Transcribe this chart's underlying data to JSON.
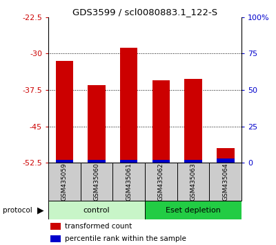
{
  "title": "GDS3599 / scl0080883.1_122-S",
  "samples": [
    "GSM435059",
    "GSM435060",
    "GSM435061",
    "GSM435062",
    "GSM435063",
    "GSM435064"
  ],
  "red_values": [
    -31.5,
    -36.5,
    -28.8,
    -35.5,
    -35.2,
    -49.5
  ],
  "blue_heights": [
    0.6,
    0.6,
    0.6,
    0.6,
    0.6,
    0.9
  ],
  "ylim_left": [
    -52.5,
    -22.5
  ],
  "ylim_right": [
    0,
    100
  ],
  "yticks_left": [
    -52.5,
    -45.0,
    -37.5,
    -30.0,
    -22.5
  ],
  "yticks_right": [
    0,
    25,
    50,
    75,
    100
  ],
  "ytick_labels_left": [
    "-52.5",
    "-45",
    "-37.5",
    "-30",
    "-22.5"
  ],
  "ytick_labels_right": [
    "0",
    "25",
    "50",
    "75",
    "100%"
  ],
  "bar_width": 0.55,
  "red_color": "#cc0000",
  "blue_color": "#0000cc",
  "bg_color": "#ffffff",
  "control_color": "#c8f5c8",
  "depletion_color": "#22cc44",
  "sample_box_color": "#cccccc",
  "grid_ticks": [
    -30.0,
    -37.5,
    -45.0
  ]
}
